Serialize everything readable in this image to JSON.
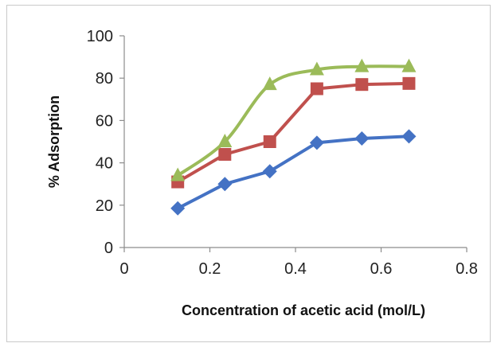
{
  "chart_data": {
    "type": "line",
    "title": "",
    "xlabel": "Concentration of acetic acid (mol/L)",
    "ylabel": "% Adsorption",
    "xlim": [
      0,
      0.8
    ],
    "ylim": [
      0,
      100
    ],
    "x_ticks": [
      "0",
      "0.2",
      "0.4",
      "0.6",
      "0.8"
    ],
    "y_ticks": [
      "0",
      "20",
      "40",
      "60",
      "80",
      "100"
    ],
    "grid": false,
    "legend": "none",
    "series": [
      {
        "marker": "diamond",
        "color": "#4472C4",
        "smooth": false,
        "x": [
          0.125,
          0.235,
          0.34,
          0.45,
          0.555,
          0.665
        ],
        "y": [
          18.5,
          30,
          36,
          49.5,
          51.5,
          52.5
        ]
      },
      {
        "marker": "square",
        "color": "#C0504D",
        "smooth": false,
        "x": [
          0.125,
          0.235,
          0.34,
          0.45,
          0.555,
          0.665
        ],
        "y": [
          31,
          44,
          50,
          75,
          77,
          77.5
        ]
      },
      {
        "marker": "triangle",
        "color": "#9BBB59",
        "smooth": true,
        "x": [
          0.125,
          0.235,
          0.34,
          0.45,
          0.555,
          0.665
        ],
        "y": [
          34,
          50,
          77,
          84,
          85.5,
          85.5
        ]
      }
    ]
  }
}
